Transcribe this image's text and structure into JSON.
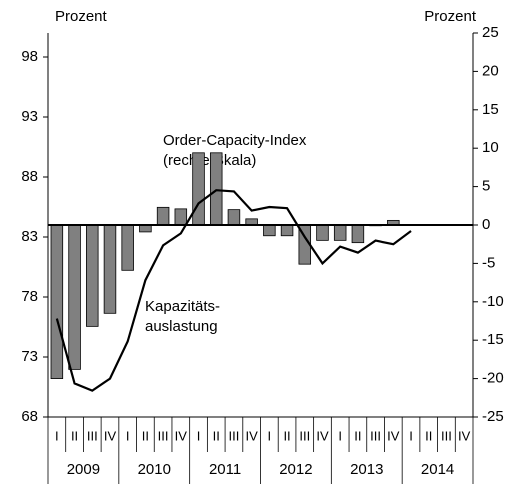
{
  "chart_data": {
    "type": "bar_line",
    "ylabel": "Prozent",
    "y2label": "Prozent",
    "categories": [
      "I",
      "II",
      "III",
      "IV",
      "I",
      "II",
      "III",
      "IV",
      "I",
      "II",
      "III",
      "IV",
      "I",
      "II",
      "III",
      "IV",
      "I",
      "II",
      "III",
      "IV",
      "I",
      "II",
      "III",
      "IV"
    ],
    "years": [
      "2009",
      "2010",
      "2011",
      "2012",
      "2013",
      "2014"
    ],
    "series": [
      {
        "name": "Order-Capacity-Index",
        "type": "bar",
        "axis": "y2",
        "color": "#808080",
        "values": [
          -20,
          -18.8,
          -13.2,
          -11.5,
          -5.9,
          -0.9,
          2.3,
          2.1,
          9.4,
          9.4,
          2.0,
          0.8,
          -1.4,
          -1.4,
          -5.1,
          -2.0,
          -2.0,
          -2.3,
          -0.1,
          0.6,
          null,
          null,
          null,
          null
        ]
      },
      {
        "name": "Kapazitätsauslastung",
        "type": "line",
        "axis": "y",
        "color": "#000000",
        "values": [
          76.2,
          70.8,
          70.2,
          71.2,
          74.3,
          79.4,
          82.3,
          83.3,
          85.8,
          86.9,
          86.8,
          85.2,
          85.5,
          85.4,
          83.0,
          80.8,
          82.2,
          81.7,
          82.7,
          82.4,
          83.5,
          null,
          null,
          null
        ]
      }
    ],
    "annotations": [
      "Order-Capacity-Index",
      "(rechte Skala)",
      "Kapazitäts-",
      "auslastung"
    ],
    "ylim": [
      68,
      100
    ],
    "yticks": [
      68,
      73,
      78,
      83,
      88,
      93,
      98
    ],
    "y2lim": [
      -25,
      25
    ],
    "y2ticks": [
      -25,
      -20,
      -15,
      -10,
      -5,
      0,
      5,
      10,
      15,
      20,
      25
    ]
  }
}
